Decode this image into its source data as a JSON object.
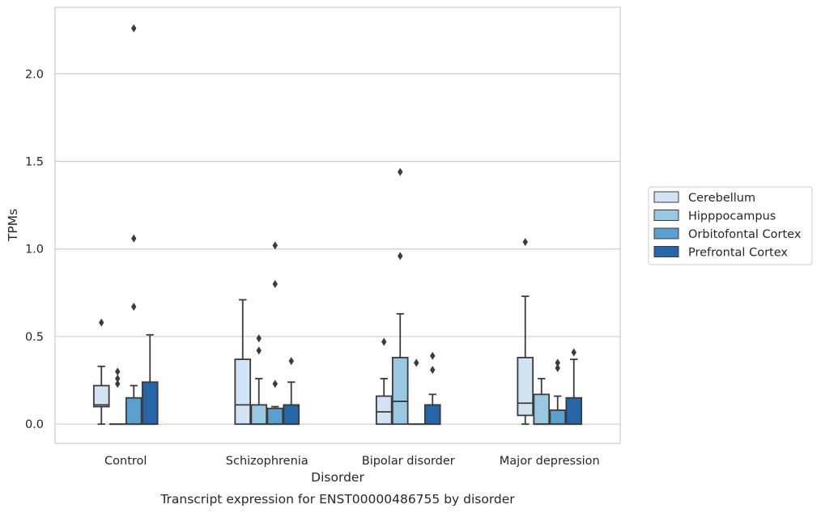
{
  "chart_data": {
    "type": "boxplot",
    "title": "Transcript expression for ENST00000486755 by disorder",
    "xlabel": "Disorder",
    "ylabel": "TPMs",
    "ylim": [
      -0.11,
      2.38
    ],
    "yticks": [
      0.0,
      0.5,
      1.0,
      1.5,
      2.0
    ],
    "ytick_labels": [
      "0.0",
      "0.5",
      "1.0",
      "1.5",
      "2.0"
    ],
    "grid": "horizontal",
    "legend_position": "right",
    "categories": [
      "Control",
      "Schizophrenia",
      "Bipolar disorder",
      "Major depression"
    ],
    "series": [
      {
        "name": "Cerebellum",
        "color": "#d2e3f3",
        "boxes": [
          {
            "min": 0.0,
            "q1": 0.1,
            "median": 0.11,
            "q3": 0.22,
            "max": 0.33,
            "outliers": [
              0.58
            ]
          },
          {
            "min": 0.0,
            "q1": 0.0,
            "median": 0.11,
            "q3": 0.37,
            "max": 0.71,
            "outliers": []
          },
          {
            "min": 0.0,
            "q1": 0.0,
            "median": 0.07,
            "q3": 0.16,
            "max": 0.26,
            "outliers": [
              0.47
            ]
          },
          {
            "min": 0.0,
            "q1": 0.05,
            "median": 0.12,
            "q3": 0.38,
            "max": 0.73,
            "outliers": [
              1.04
            ]
          }
        ]
      },
      {
        "name": "Hipppocampus",
        "color": "#9ac8e0",
        "boxes": [
          {
            "min": 0.0,
            "q1": 0.0,
            "median": 0.0,
            "q3": 0.0,
            "max": 0.0,
            "outliers": [
              0.23,
              0.26,
              0.3
            ]
          },
          {
            "min": 0.0,
            "q1": 0.0,
            "median": 0.0,
            "q3": 0.11,
            "max": 0.26,
            "outliers": [
              0.42,
              0.49
            ]
          },
          {
            "min": 0.0,
            "q1": 0.0,
            "median": 0.13,
            "q3": 0.38,
            "max": 0.63,
            "outliers": [
              0.96,
              1.44
            ]
          },
          {
            "min": 0.0,
            "q1": 0.0,
            "median": 0.0,
            "q3": 0.17,
            "max": 0.26,
            "outliers": []
          }
        ]
      },
      {
        "name": "Orbitofontal Cortex",
        "color": "#5a9fcd",
        "boxes": [
          {
            "min": 0.0,
            "q1": 0.0,
            "median": 0.0,
            "q3": 0.15,
            "max": 0.22,
            "outliers": [
              0.67,
              1.06,
              2.26
            ]
          },
          {
            "min": 0.0,
            "q1": 0.0,
            "median": 0.0,
            "q3": 0.09,
            "max": 0.1,
            "outliers": [
              0.23,
              0.8,
              1.02
            ]
          },
          {
            "min": 0.0,
            "q1": 0.0,
            "median": 0.0,
            "q3": 0.0,
            "max": 0.0,
            "outliers": [
              0.35
            ]
          },
          {
            "min": 0.0,
            "q1": 0.0,
            "median": 0.0,
            "q3": 0.08,
            "max": 0.16,
            "outliers": [
              0.32,
              0.35
            ]
          }
        ]
      },
      {
        "name": "Prefrontal Cortex",
        "color": "#2665a8",
        "boxes": [
          {
            "min": 0.0,
            "q1": 0.0,
            "median": 0.0,
            "q3": 0.24,
            "max": 0.51,
            "outliers": []
          },
          {
            "min": 0.0,
            "q1": 0.0,
            "median": 0.0,
            "q3": 0.11,
            "max": 0.24,
            "outliers": [
              0.36
            ]
          },
          {
            "min": 0.0,
            "q1": 0.0,
            "median": 0.0,
            "q3": 0.11,
            "max": 0.17,
            "outliers": [
              0.31,
              0.39
            ]
          },
          {
            "min": 0.0,
            "q1": 0.0,
            "median": 0.0,
            "q3": 0.15,
            "max": 0.37,
            "outliers": [
              0.41
            ]
          }
        ]
      }
    ]
  }
}
